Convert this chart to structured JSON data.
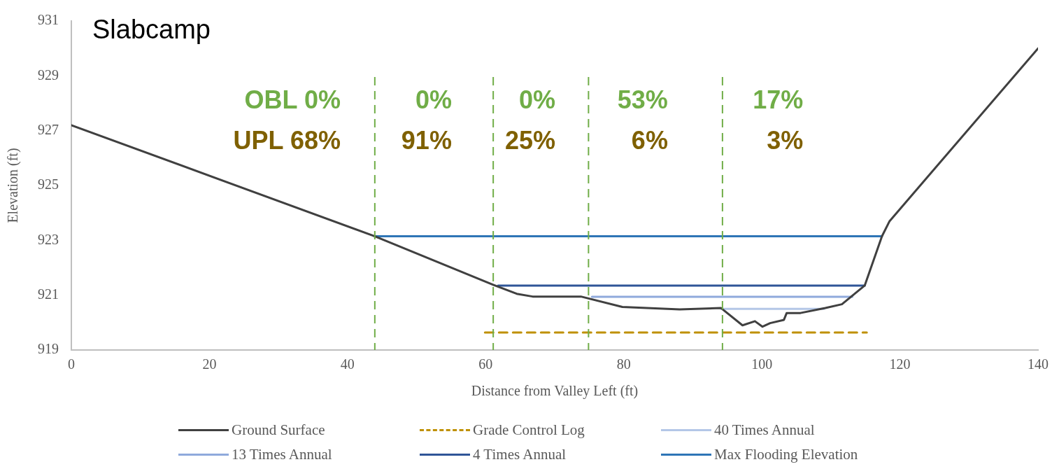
{
  "chart_data": {
    "type": "line",
    "title": "Slabcamp",
    "xlabel": "Distance from Valley Left (ft)",
    "ylabel": "Elevation (ft)",
    "xlim": [
      0,
      140
    ],
    "xticks": [
      0,
      20,
      40,
      60,
      80,
      100,
      120,
      140
    ],
    "ylim": [
      919,
      931
    ],
    "yticks": [
      919,
      921,
      923,
      925,
      927,
      929,
      931
    ],
    "grid": false,
    "legend": "bottom",
    "marker": "none",
    "series": [
      {
        "name": "Ground Surface",
        "color": "#404040",
        "line_style": "solid",
        "x": [
          0,
          43.9,
          61.1,
          64.5,
          66.8,
          73.8,
          79.8,
          88.1,
          94.1,
          97.2,
          99.0,
          100.1,
          101.2,
          103.2,
          103.6,
          105.6,
          109.2,
          111.6,
          114.9,
          117.4,
          118.5,
          140
        ],
        "values": [
          927.2,
          923.15,
          921.38,
          921.05,
          920.95,
          920.95,
          920.57,
          920.48,
          920.53,
          919.9,
          920.05,
          919.85,
          919.98,
          920.1,
          920.35,
          920.35,
          920.53,
          920.67,
          921.35,
          923.15,
          923.7,
          930.0
        ]
      },
      {
        "name": "Grade Control Log",
        "color": "#bf9000",
        "line_style": "dashed",
        "x": [
          59.9,
          115.2
        ],
        "values": [
          919.64,
          919.64
        ]
      },
      {
        "name": "40 Times Annual",
        "color": "#b4c7e7",
        "line_style": "solid",
        "x": [
          94.1,
          109.0
        ],
        "values": [
          920.5,
          920.5
        ]
      },
      {
        "name": "13 Times Annual",
        "color": "#8faadc",
        "line_style": "solid",
        "x": [
          75.4,
          113.1
        ],
        "values": [
          920.94,
          920.94
        ]
      },
      {
        "name": "4 Times Annual",
        "color": "#2f5597",
        "line_style": "solid",
        "x": [
          61.8,
          114.9
        ],
        "values": [
          921.35,
          921.35
        ]
      },
      {
        "name": "Max Flooding Elevation",
        "color": "#2e75b6",
        "line_style": "solid",
        "x": [
          43.9,
          117.4
        ],
        "values": [
          923.15,
          923.15
        ]
      }
    ],
    "ref_lines": [
      {
        "axis": "x",
        "value": 43.95,
        "color": "#70ad47",
        "line_style": "dashed"
      },
      {
        "axis": "x",
        "value": 61.1,
        "color": "#70ad47",
        "line_style": "dashed"
      },
      {
        "axis": "x",
        "value": 74.9,
        "color": "#70ad47",
        "line_style": "dashed"
      },
      {
        "axis": "x",
        "value": 94.3,
        "color": "#70ad47",
        "line_style": "dashed"
      }
    ],
    "annotations": [
      "OBL 0%",
      "0%",
      "0%",
      "53%",
      "17%",
      "UPL 68%",
      "91%",
      "25%",
      "6%",
      "3%"
    ]
  }
}
